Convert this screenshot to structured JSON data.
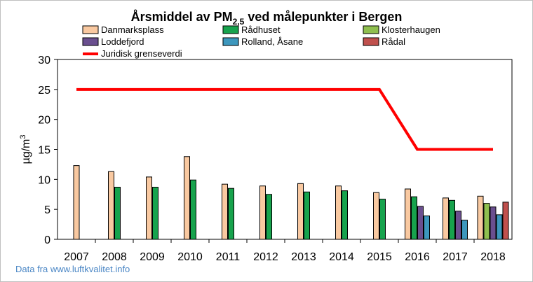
{
  "chart_data": {
    "type": "bar",
    "title": {
      "prefix": "Årsmiddel av PM",
      "subscript": "2,5",
      "suffix": " ved målepunkter i Bergen"
    },
    "ylabel": {
      "prefix": "µg/m",
      "superscript": "3"
    },
    "xlabel": "",
    "ylim": [
      0,
      30
    ],
    "yticks": [
      0,
      5,
      10,
      15,
      20,
      25,
      30
    ],
    "categories": [
      "2007",
      "2008",
      "2009",
      "2010",
      "2011",
      "2012",
      "2013",
      "2014",
      "2015",
      "2016",
      "2017",
      "2018"
    ],
    "series": [
      {
        "name": "Danmarksplass",
        "color": "#f9c9a1",
        "values": [
          12.3,
          11.3,
          10.4,
          13.8,
          9.2,
          8.9,
          9.3,
          8.9,
          7.8,
          8.4,
          6.9,
          7.2
        ]
      },
      {
        "name": "Rådhuset",
        "color": "#17a34d",
        "values": [
          null,
          8.7,
          8.7,
          9.9,
          8.5,
          7.5,
          7.9,
          8.1,
          6.7,
          7.1,
          6.5,
          null
        ]
      },
      {
        "name": "Klosterhaugen",
        "color": "#8fbf4f",
        "values": [
          null,
          null,
          null,
          null,
          null,
          null,
          null,
          null,
          null,
          null,
          null,
          6.0
        ]
      },
      {
        "name": "Loddefjord",
        "color": "#6a4f8f",
        "values": [
          null,
          null,
          null,
          null,
          null,
          null,
          null,
          null,
          null,
          5.5,
          4.7,
          5.4
        ]
      },
      {
        "name": "Rolland, Åsane",
        "color": "#3d97bd",
        "values": [
          null,
          null,
          null,
          null,
          null,
          null,
          null,
          null,
          null,
          3.9,
          3.2,
          4.1
        ]
      },
      {
        "name": "Rådal",
        "color": "#c0504d",
        "values": [
          null,
          null,
          null,
          null,
          null,
          null,
          null,
          null,
          null,
          null,
          null,
          6.2
        ]
      }
    ],
    "limit_line": {
      "name": "Juridisk grenseverdi",
      "color": "#ff0000",
      "x": [
        "2007",
        "2008",
        "2009",
        "2010",
        "2011",
        "2012",
        "2013",
        "2014",
        "2015",
        "2016",
        "2017",
        "2018"
      ],
      "values": [
        25,
        25,
        25,
        25,
        25,
        25,
        25,
        25,
        25,
        15,
        15,
        15
      ]
    },
    "grid": false,
    "legend_position": "top",
    "source": "Data fra www.luftkvalitet.info"
  }
}
